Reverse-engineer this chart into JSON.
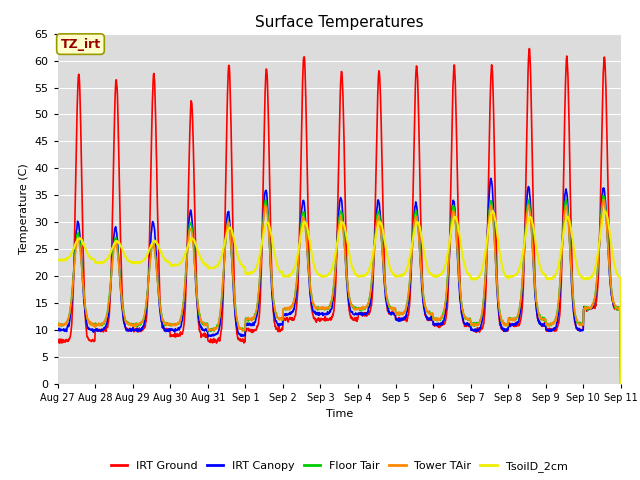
{
  "title": "Surface Temperatures",
  "xlabel": "Time",
  "ylabel": "Temperature (C)",
  "ylim": [
    0,
    65
  ],
  "yticks": [
    0,
    5,
    10,
    15,
    20,
    25,
    30,
    35,
    40,
    45,
    50,
    55,
    60,
    65
  ],
  "xtick_labels": [
    "Aug 27",
    "Aug 28",
    "Aug 29",
    "Aug 30",
    "Aug 31",
    "Sep 1",
    "Sep 2",
    "Sep 3",
    "Sep 4",
    "Sep 5",
    "Sep 6",
    "Sep 7",
    "Sep 8",
    "Sep 9",
    "Sep 10",
    "Sep 11"
  ],
  "series": {
    "IRT Ground": {
      "color": "#FF0000",
      "linewidth": 1.2
    },
    "IRT Canopy": {
      "color": "#0000FF",
      "linewidth": 1.2
    },
    "Floor Tair": {
      "color": "#00CC00",
      "linewidth": 1.2
    },
    "Tower TAir": {
      "color": "#FF8800",
      "linewidth": 1.2
    },
    "TsoilD_2cm": {
      "color": "#EEEE00",
      "linewidth": 1.5
    }
  },
  "annotation_text": "TZ_irt",
  "annotation_bg": "#FFFFCC",
  "annotation_border": "#999900",
  "plot_bg": "#DCDCDC",
  "n_days": 15,
  "pts_per_day": 96
}
